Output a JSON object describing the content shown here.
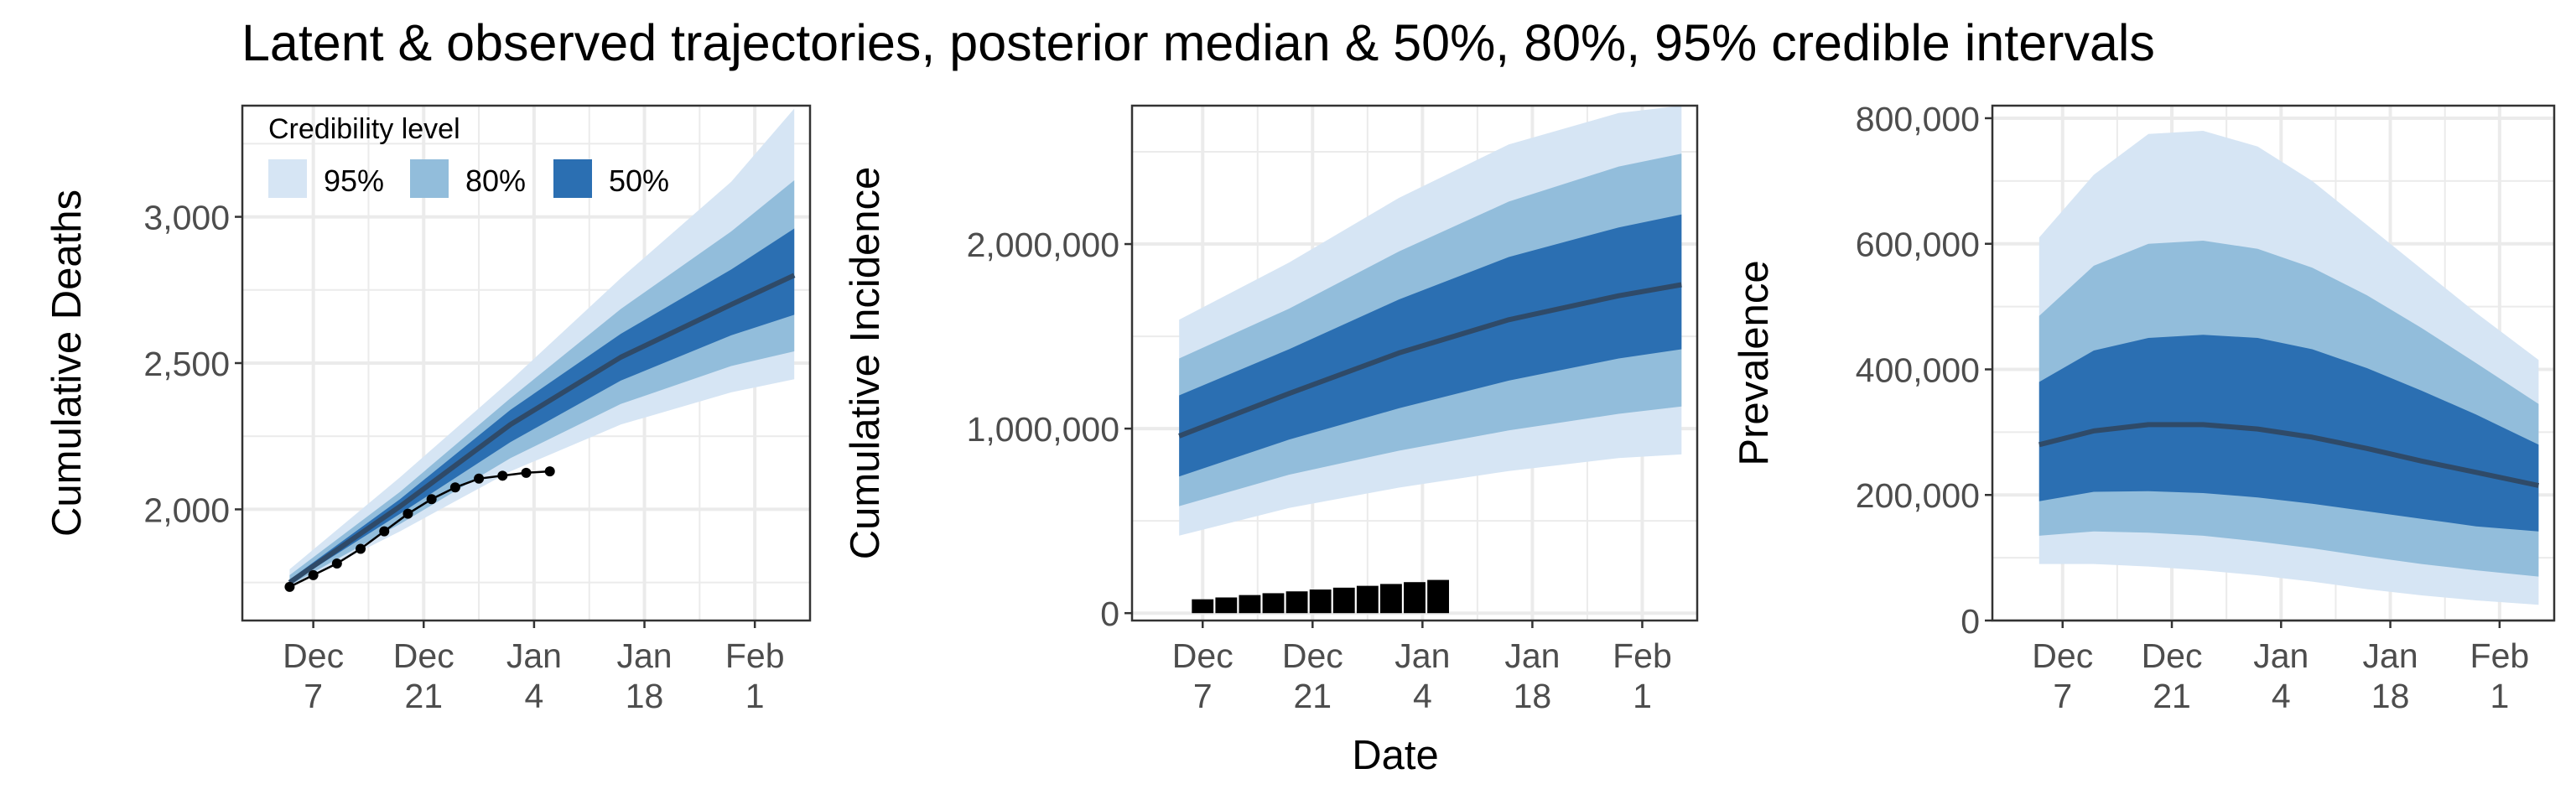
{
  "figure": {
    "title": "Latent & observed trajectories, posterior median & 50%, 80%, 95% credible intervals",
    "shared_xlabel": "Date"
  },
  "colors": {
    "band95": "#d6e5f4",
    "band80": "#92bddb",
    "band50": "#2b6fb2",
    "median": "#2f4a68",
    "observed": "#000000",
    "grid": "#ebebeb",
    "axis_text": "#4d4d4d"
  },
  "legend": {
    "title": "Credibility level",
    "items": [
      "95%",
      "80%",
      "50%"
    ]
  },
  "chart_data": [
    {
      "type": "area",
      "ylabel": "Cumulative Deaths",
      "ylim": [
        1620,
        3380
      ],
      "yticks": [
        2000,
        2500,
        3000
      ],
      "ytick_labels": [
        "2,000",
        "2,500",
        "3,000"
      ],
      "xticks": [
        7,
        21,
        35,
        49,
        63
      ],
      "xtick_labels": [
        [
          "Dec",
          "7"
        ],
        [
          "Dec",
          "21"
        ],
        [
          "Jan",
          "4"
        ],
        [
          "Jan",
          "18"
        ],
        [
          "Feb",
          "1"
        ]
      ],
      "x_minor": [
        14,
        28,
        42,
        56
      ],
      "xlim": [
        -2,
        70
      ],
      "legend_position": "top-left",
      "bands": {
        "x": [
          4,
          18,
          32,
          46,
          60,
          68
        ],
        "q025": [
          1735,
          1925,
          2130,
          2290,
          2400,
          2445
        ],
        "q10": [
          1740,
          1950,
          2175,
          2360,
          2490,
          2540
        ],
        "q25": [
          1745,
          1985,
          2230,
          2440,
          2595,
          2665
        ],
        "median": [
          1750,
          2010,
          2290,
          2520,
          2700,
          2800
        ],
        "q75": [
          1760,
          2035,
          2340,
          2600,
          2820,
          2960
        ],
        "q90": [
          1775,
          2060,
          2380,
          2685,
          2950,
          3125
        ],
        "q975": [
          1795,
          2110,
          2440,
          2790,
          3120,
          3370
        ]
      },
      "observed": {
        "x": [
          4,
          7,
          10,
          13,
          16,
          19,
          22,
          25,
          28,
          31,
          34,
          37
        ],
        "y": [
          1735,
          1775,
          1815,
          1865,
          1925,
          1985,
          2035,
          2075,
          2105,
          2115,
          2125,
          2130
        ]
      }
    },
    {
      "type": "area",
      "ylabel": "Cumulative Incidence",
      "ylim": [
        -40000,
        2750000
      ],
      "yticks": [
        0,
        1000000,
        2000000
      ],
      "ytick_labels": [
        "0",
        "1,000,000",
        "2,000,000"
      ],
      "xticks": [
        7,
        21,
        35,
        49,
        63
      ],
      "xtick_labels": [
        [
          "Dec",
          "7"
        ],
        [
          "Dec",
          "21"
        ],
        [
          "Jan",
          "4"
        ],
        [
          "Jan",
          "18"
        ],
        [
          "Feb",
          "1"
        ]
      ],
      "x_minor": [
        14,
        28,
        42,
        56
      ],
      "xlim": [
        -2,
        70
      ],
      "bands": {
        "x": [
          4,
          18,
          32,
          46,
          60,
          68
        ],
        "q025": [
          420000,
          570000,
          680000,
          770000,
          840000,
          860000
        ],
        "q10": [
          580000,
          750000,
          880000,
          990000,
          1080000,
          1120000
        ],
        "q25": [
          740000,
          940000,
          1110000,
          1260000,
          1380000,
          1430000
        ],
        "median": [
          960000,
          1190000,
          1410000,
          1590000,
          1720000,
          1780000
        ],
        "q75": [
          1180000,
          1430000,
          1700000,
          1930000,
          2090000,
          2160000
        ],
        "q90": [
          1380000,
          1650000,
          1960000,
          2230000,
          2420000,
          2490000
        ],
        "q975": [
          1590000,
          1900000,
          2250000,
          2540000,
          2710000,
          2750000
        ]
      },
      "observed_bars": {
        "x": [
          7,
          10,
          13,
          16,
          19,
          22,
          25,
          28,
          31,
          34,
          37
        ],
        "values": [
          75000,
          85000,
          98000,
          108000,
          118000,
          128000,
          138000,
          148000,
          158000,
          168000,
          180000
        ]
      }
    },
    {
      "type": "area",
      "ylabel": "Prevalence",
      "ylim": [
        0,
        820000
      ],
      "yticks": [
        0,
        200000,
        400000,
        600000,
        800000
      ],
      "ytick_labels": [
        "0",
        "200,000",
        "400,000",
        "600,000",
        "800,000"
      ],
      "xticks": [
        7,
        21,
        35,
        49,
        63
      ],
      "xtick_labels": [
        [
          "Dec",
          "7"
        ],
        [
          "Dec",
          "21"
        ],
        [
          "Jan",
          "4"
        ],
        [
          "Jan",
          "18"
        ],
        [
          "Feb",
          "1"
        ]
      ],
      "x_minor": [
        14,
        28,
        42,
        56
      ],
      "xlim": [
        -2,
        70
      ],
      "bands": {
        "x": [
          4,
          11,
          18,
          25,
          32,
          39,
          46,
          53,
          60,
          68
        ],
        "q025": [
          90000,
          90000,
          86000,
          80000,
          72000,
          62000,
          50000,
          40000,
          32000,
          25000
        ],
        "q10": [
          135000,
          142000,
          140000,
          135000,
          126000,
          115000,
          102000,
          90000,
          80000,
          70000
        ],
        "q25": [
          190000,
          205000,
          206000,
          203000,
          196000,
          186000,
          174000,
          162000,
          150000,
          142000
        ],
        "median": [
          280000,
          302000,
          312000,
          312000,
          305000,
          292000,
          274000,
          254000,
          236000,
          215000
        ],
        "q75": [
          380000,
          430000,
          450000,
          455000,
          450000,
          432000,
          402000,
          366000,
          328000,
          280000
        ],
        "q90": [
          485000,
          565000,
          600000,
          605000,
          592000,
          562000,
          518000,
          466000,
          410000,
          345000
        ],
        "q975": [
          610000,
          710000,
          775000,
          780000,
          755000,
          700000,
          630000,
          560000,
          490000,
          415000
        ]
      }
    }
  ]
}
